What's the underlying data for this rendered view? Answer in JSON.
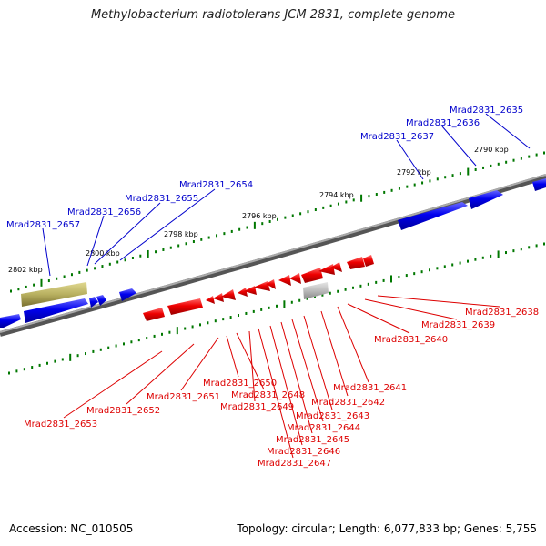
{
  "title": "Methylobacterium radiotolerans JCM 2831, complete genome",
  "footer": {
    "accession": "Accession: NC_010505",
    "topology": "Topology: circular; Length: 6,077,833 bp; Genes: 5,755"
  },
  "colors": {
    "backbone": "#888888",
    "plus_gene": "#0000ee",
    "minus_gene": "#ee0000",
    "tick": "#007700",
    "other_gene": "#b8b060",
    "grey_gene": "#bbbbbb"
  },
  "scale_labels": [
    "2802 kbp",
    "2800 kbp",
    "2798 kbp",
    "2796 kbp",
    "2794 kbp",
    "2792 kbp",
    "2790 kbp"
  ],
  "upper_genes": [
    "Mrad2831_2657",
    "Mrad2831_2656",
    "Mrad2831_2655",
    "Mrad2831_2654",
    "Mrad2831_2637",
    "Mrad2831_2636",
    "Mrad2831_2635"
  ],
  "lower_genes": [
    "Mrad2831_2653",
    "Mrad2831_2652",
    "Mrad2831_2651",
    "Mrad2831_2650",
    "Mrad2831_2648",
    "Mrad2831_2649",
    "Mrad2831_2647",
    "Mrad2831_2646",
    "Mrad2831_2645",
    "Mrad2831_2644",
    "Mrad2831_2643",
    "Mrad2831_2642",
    "Mrad2831_2641",
    "Mrad2831_2640",
    "Mrad2831_2639",
    "Mrad2831_2638"
  ]
}
